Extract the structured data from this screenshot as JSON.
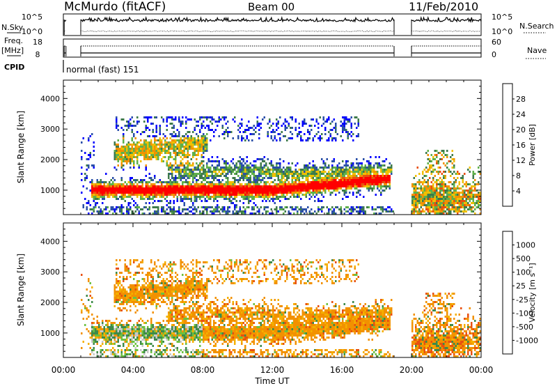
{
  "header": {
    "title": "McMurdo (fitACF)",
    "beam": "Beam 00",
    "date": "11/Feb/2010"
  },
  "panels": {
    "nsky": {
      "label": "N.Sky",
      "right_label": "N.Search",
      "left_ticks": [
        "10^5",
        "10^0"
      ],
      "right_ticks": [
        "10^5",
        "10^0"
      ]
    },
    "freq": {
      "label_line1": "Freq.",
      "label_line2": "[MHz]",
      "right_label": "Nave",
      "left_ticks": [
        "18",
        "8"
      ],
      "right_ticks": [
        "60",
        "0"
      ]
    },
    "cpid": {
      "label": "CPID",
      "mode": "normal (fast) 151"
    }
  },
  "colors": {
    "scale": [
      "#0000ff",
      "#2a4fa8",
      "#3e7a4a",
      "#5fb04a",
      "#c8c8c8",
      "#f0c000",
      "#f29100",
      "#e85010",
      "#ff0000"
    ],
    "ground_scatter": "#a0a0a0",
    "trace": "#000000"
  },
  "chart_data": [
    {
      "type": "heatmap",
      "quantity": "Power",
      "xlabel": "",
      "ylabel": "Slant Range [km]",
      "x_ticks": [
        "00:00",
        "04:00",
        "08:00",
        "12:00",
        "16:00",
        "20:00",
        "00:00"
      ],
      "y_ticks": [
        "1000",
        "2000",
        "3000",
        "4000"
      ],
      "ylim": [
        200,
        4600
      ],
      "xlim_hours": [
        0,
        24
      ],
      "data_gap_hours": [
        19,
        20
      ],
      "colorbar": {
        "label": "Power [dB]",
        "ticks": [
          "4",
          "8",
          "12",
          "16",
          "20",
          "24",
          "28"
        ],
        "colors": [
          "#0000ff",
          "#2a4fa8",
          "#3e7a4a",
          "#5fb04a",
          "#f0c000",
          "#f29100",
          "#e85010",
          "#ff0000"
        ]
      }
    },
    {
      "type": "heatmap",
      "quantity": "Velocity",
      "xlabel": "Time UT",
      "ylabel": "Slant Range [km]",
      "x_ticks": [
        "00:00",
        "04:00",
        "08:00",
        "12:00",
        "16:00",
        "20:00",
        "00:00"
      ],
      "y_ticks": [
        "1000",
        "2000",
        "3000",
        "4000"
      ],
      "ylim": [
        200,
        4600
      ],
      "xlim_hours": [
        0,
        24
      ],
      "data_gap_hours": [
        19,
        20
      ],
      "colorbar": {
        "label": "Velocity [m s⁻¹]",
        "ticks": [
          "1000",
          "500",
          "100",
          "25",
          "-25",
          "-100",
          "-500",
          "-1000"
        ],
        "colors": [
          "#2a3fa0",
          "#3e7aa0",
          "#3e8a4a",
          "#6cc040",
          "#c8c8c8",
          "#f5b000",
          "#f29100",
          "#e85010",
          "#ff0000"
        ]
      }
    }
  ]
}
